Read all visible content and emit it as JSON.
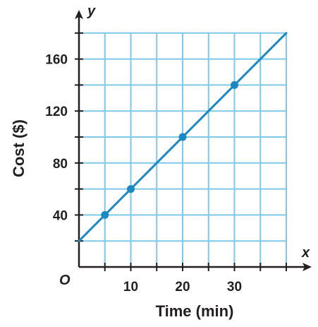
{
  "chart_data": {
    "type": "line",
    "xlabel": "Time (min)",
    "ylabel": "Cost ($)",
    "x_axis_var": "x",
    "y_axis_var": "y",
    "origin_label": "O",
    "xlim": [
      0,
      40
    ],
    "ylim": [
      0,
      180
    ],
    "x_grid_step": 5,
    "y_grid_step": 20,
    "grid": true,
    "x_tick_labels": [
      "10",
      "20",
      "30"
    ],
    "x_tick_values": [
      10,
      20,
      30
    ],
    "y_tick_labels": [
      "40",
      "80",
      "120",
      "160"
    ],
    "y_tick_values": [
      40,
      80,
      120,
      160
    ],
    "line": {
      "x": [
        0,
        40
      ],
      "y": [
        20,
        180
      ]
    },
    "series": [
      {
        "x": [
          5,
          10,
          20,
          30
        ],
        "y": [
          40,
          60,
          100,
          140
        ]
      }
    ],
    "colors": {
      "grid": "#7ec8e8",
      "line": "#1b88c4",
      "points": "#1b88c4",
      "axis": "#231f20"
    }
  }
}
